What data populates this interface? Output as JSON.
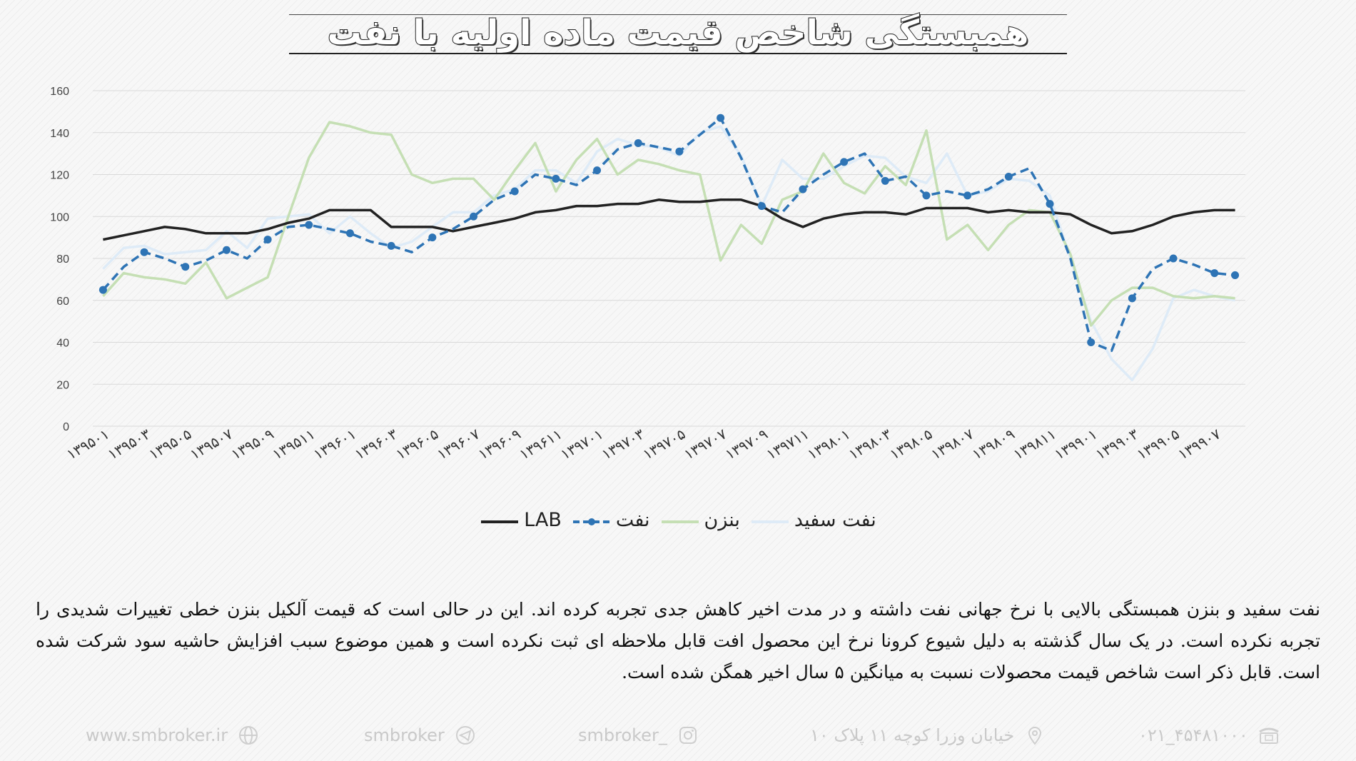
{
  "title": "همبستگی شاخص قیمت ماده اولیه با نفت",
  "colors": {
    "LAB": "#222222",
    "naft": "#2E74B5",
    "benzin": "#C5DFB4",
    "naft_sefid": "#DEEBF7"
  },
  "legend": [
    {
      "label": "LAB",
      "color": "#222222",
      "style": "solid"
    },
    {
      "label": "نفت",
      "color": "#2E74B5",
      "style": "dashed-dots"
    },
    {
      "label": "بنزن",
      "color": "#C5DFB4",
      "style": "solid"
    },
    {
      "label": "نفت سفید",
      "color": "#DEEBF7",
      "style": "solid"
    }
  ],
  "chart_data": {
    "type": "line",
    "ylim": [
      0,
      160
    ],
    "yticks": [
      "0",
      "20",
      "40",
      "60",
      "80",
      "100",
      "120",
      "140",
      "160"
    ],
    "grid": true,
    "legend_position": "bottom",
    "x": [
      "۱۳۹۵۰۱",
      "۱۳۹۵۰۲",
      "۱۳۹۵۰۳",
      "۱۳۹۵۰۴",
      "۱۳۹۵۰۵",
      "۱۳۹۵۰۶",
      "۱۳۹۵۰۷",
      "۱۳۹۵۰۸",
      "۱۳۹۵۰۹",
      "۱۳۹۵۱۰",
      "۱۳۹۵۱۱",
      "۱۳۹۵۱۲",
      "۱۳۹۶۰۱",
      "۱۳۹۶۰۲",
      "۱۳۹۶۰۳",
      "۱۳۹۶۰۴",
      "۱۳۹۶۰۵",
      "۱۳۹۶۰۶",
      "۱۳۹۶۰۷",
      "۱۳۹۶۰۸",
      "۱۳۹۶۰۹",
      "۱۳۹۶۱۰",
      "۱۳۹۶۱۱",
      "۱۳۹۶۱۲",
      "۱۳۹۷۰۱",
      "۱۳۹۷۰۲",
      "۱۳۹۷۰۳",
      "۱۳۹۷۰۴",
      "۱۳۹۷۰۵",
      "۱۳۹۷۰۶",
      "۱۳۹۷۰۷",
      "۱۳۹۷۰۸",
      "۱۳۹۷۰۹",
      "۱۳۹۷۱۰",
      "۱۳۹۷۱۱",
      "۱۳۹۷۱۲",
      "۱۳۹۸۰۱",
      "۱۳۹۸۰۲",
      "۱۳۹۸۰۳",
      "۱۳۹۸۰۴",
      "۱۳۹۸۰۵",
      "۱۳۹۸۰۶",
      "۱۳۹۸۰۷",
      "۱۳۹۸۰۸",
      "۱۳۹۸۰۹",
      "۱۳۹۸۱۰",
      "۱۳۹۸۱۱",
      "۱۳۹۸۱۲",
      "۱۳۹۹۰۱",
      "۱۳۹۹۰۲",
      "۱۳۹۹۰۳",
      "۱۳۹۹۰۴",
      "۱۳۹۹۰۵",
      "۱۳۹۹۰۶",
      "۱۳۹۹۰۷",
      "۱۳۹۹۰۸"
    ],
    "xtick_labels": [
      "۱۳۹۵۰۱",
      "۱۳۹۵۰۳",
      "۱۳۹۵۰۵",
      "۱۳۹۵۰۷",
      "۱۳۹۵۰۹",
      "۱۳۹۵۱۱",
      "۱۳۹۶۰۱",
      "۱۳۹۶۰۳",
      "۱۳۹۶۰۵",
      "۱۳۹۶۰۷",
      "۱۳۹۶۰۹",
      "۱۳۹۶۱۱",
      "۱۳۹۷۰۱",
      "۱۳۹۷۰۳",
      "۱۳۹۷۰۵",
      "۱۳۹۷۰۷",
      "۱۳۹۷۰۹",
      "۱۳۹۷۱۱",
      "۱۳۹۸۰۱",
      "۱۳۹۸۰۳",
      "۱۳۹۸۰۵",
      "۱۳۹۸۰۷",
      "۱۳۹۸۰۹",
      "۱۳۹۸۱۱",
      "۱۳۹۹۰۱",
      "۱۳۹۹۰۳",
      "۱۳۹۹۰۵",
      "۱۳۹۹۰۷"
    ],
    "series": [
      {
        "name": "LAB",
        "color": "#222222",
        "style": "solid",
        "values": [
          89,
          91,
          93,
          95,
          94,
          92,
          92,
          92,
          94,
          97,
          99,
          103,
          103,
          103,
          95,
          95,
          95,
          93,
          95,
          97,
          99,
          102,
          103,
          105,
          105,
          106,
          106,
          108,
          107,
          107,
          108,
          108,
          105,
          99,
          95,
          99,
          101,
          102,
          102,
          101,
          104,
          104,
          104,
          102,
          103,
          102,
          102,
          101,
          96,
          92,
          93,
          96,
          100,
          102,
          103,
          103
        ]
      },
      {
        "name": "نفت",
        "color": "#2E74B5",
        "style": "dashed-dots",
        "values": [
          65,
          76,
          83,
          80,
          76,
          79,
          84,
          80,
          89,
          95,
          96,
          94,
          92,
          88,
          86,
          83,
          90,
          94,
          100,
          108,
          112,
          120,
          118,
          115,
          122,
          132,
          135,
          133,
          131,
          139,
          147,
          128,
          105,
          102,
          113,
          120,
          126,
          130,
          117,
          119,
          110,
          112,
          110,
          113,
          119,
          123,
          106,
          80,
          40,
          36,
          61,
          75,
          80,
          77,
          73,
          72
        ]
      },
      {
        "name": "بنزن",
        "color": "#C5DFB4",
        "style": "solid",
        "values": [
          62,
          73,
          71,
          70,
          68,
          78,
          61,
          66,
          71,
          100,
          128,
          145,
          143,
          140,
          139,
          120,
          116,
          118,
          118,
          108,
          122,
          135,
          112,
          127,
          137,
          120,
          127,
          125,
          122,
          120,
          79,
          96,
          87,
          108,
          112,
          130,
          116,
          111,
          124,
          115,
          141,
          89,
          96,
          84,
          96,
          103,
          102,
          82,
          48,
          60,
          66,
          66,
          62,
          61,
          62,
          61
        ]
      },
      {
        "name": "نفت سفید",
        "color": "#DEEBF7",
        "style": "solid",
        "values": [
          75,
          85,
          86,
          82,
          83,
          84,
          93,
          85,
          99,
          100,
          101,
          92,
          100,
          92,
          85,
          88,
          95,
          102,
          102,
          110,
          113,
          122,
          122,
          116,
          131,
          137,
          134,
          133,
          129,
          140,
          143,
          129,
          105,
          127,
          118,
          118,
          124,
          129,
          128,
          119,
          116,
          130,
          110,
          112,
          118,
          117,
          110,
          80,
          50,
          32,
          22,
          37,
          61,
          65,
          62,
          60
        ]
      }
    ]
  },
  "paragraph": "نفت سفید و بنزن همبستگی بالایی با نرخ جهانی نفت داشته و در مدت اخیر کاهش جدی تجربه کرده اند. این در حالی است که قیمت آلکیل بنزن خطی تغییرات شدیدی را تجربه نکرده است. در یک سال گذشته به دلیل شیوع کرونا نرخ این محصول افت قابل ملاحظه ای ثبت نکرده است و همین موضوع سبب افزایش حاشیه سود شرکت شده است. قابل ذکر است شاخص قیمت محصولات نسبت به میانگین ۵ سال اخیر همگن شده است.",
  "footer": {
    "website": "www.smbroker.ir",
    "telegram": "smbroker",
    "instagram": "smbroker_",
    "address": "خیابان وزرا کوچه ۱۱ پلاک ۱۰",
    "phone": "۰۲۱_۴۵۴۸۱۰۰۰",
    "icons": [
      "globe-icon",
      "telegram-icon",
      "instagram-icon",
      "location-pin-icon",
      "phone-icon"
    ]
  }
}
